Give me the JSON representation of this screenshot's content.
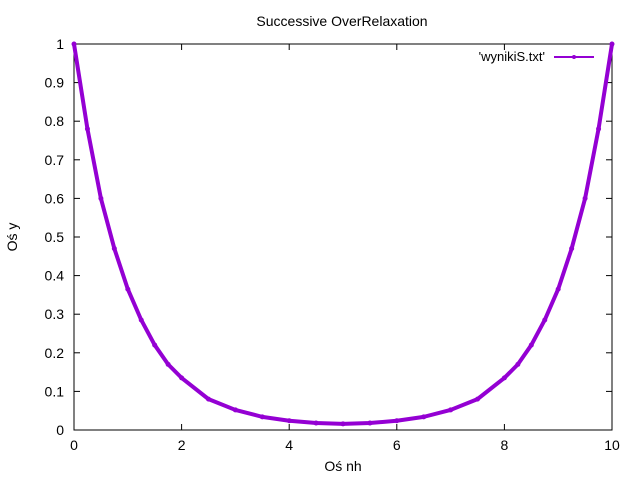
{
  "chart_data": {
    "type": "line",
    "title": "Successive OverRelaxation",
    "xlabel": "Oś nh",
    "ylabel": "Oś y",
    "xlim": [
      0,
      10
    ],
    "ylim": [
      0,
      1
    ],
    "xticks": [
      "0",
      "2",
      "4",
      "6",
      "8",
      "10"
    ],
    "yticks": [
      "0",
      "0.1",
      "0.2",
      "0.3",
      "0.4",
      "0.5",
      "0.6",
      "0.7",
      "0.8",
      "0.9",
      "1"
    ],
    "grid": false,
    "legend_position": "top-right",
    "series": [
      {
        "name": "'wynikiS.txt'",
        "color": "#9400d3",
        "x": [
          0,
          0.25,
          0.5,
          0.75,
          1,
          1.25,
          1.5,
          1.75,
          2,
          2.5,
          3,
          3.5,
          4,
          4.5,
          5,
          5.5,
          6,
          6.5,
          7,
          7.5,
          8,
          8.25,
          8.5,
          8.75,
          9,
          9.25,
          9.5,
          9.75,
          10
        ],
        "y": [
          1,
          0.78,
          0.6,
          0.47,
          0.365,
          0.285,
          0.22,
          0.17,
          0.135,
          0.08,
          0.052,
          0.034,
          0.024,
          0.018,
          0.016,
          0.018,
          0.024,
          0.034,
          0.052,
          0.08,
          0.135,
          0.17,
          0.22,
          0.285,
          0.365,
          0.47,
          0.6,
          0.78,
          1
        ]
      }
    ]
  }
}
